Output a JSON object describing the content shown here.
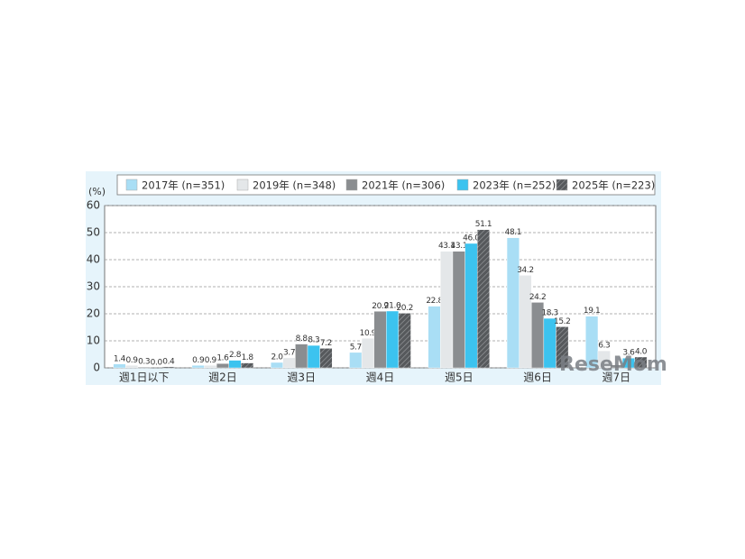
{
  "chart_data": {
    "type": "bar",
    "y_label": "(%)",
    "watermark": "ReseMom",
    "categories": [
      "週1日以下",
      "週2日",
      "週3日",
      "週4日",
      "週5日",
      "週6日",
      "週7日"
    ],
    "ylim": [
      0,
      60
    ],
    "yticks": [
      0,
      10,
      20,
      30,
      40,
      50,
      60
    ],
    "grid": true,
    "series": [
      {
        "name": "2017年 (n=351)",
        "color": "#a9def5",
        "values": [
          1.4,
          0.9,
          2.0,
          5.7,
          22.8,
          48.1,
          19.1
        ],
        "value_labels": [
          "1.4",
          "0.9",
          "2.0",
          "5.7",
          "22.8",
          "48.1",
          "19.1"
        ]
      },
      {
        "name": "2019年 (n=348)",
        "color": "#e4e7e9",
        "values": [
          0.9,
          0.9,
          3.7,
          10.9,
          43.1,
          34.2,
          6.3
        ],
        "value_labels": [
          "0.9",
          "0.9",
          "3.7",
          "10.9",
          "43.1",
          "34.2",
          "6.3"
        ]
      },
      {
        "name": "2021年 (n=306)",
        "color": "#8a8d90",
        "values": [
          0.3,
          1.6,
          8.8,
          20.9,
          43.1,
          24.2,
          1.1
        ],
        "value_labels": [
          "0.3",
          "1.6",
          "8.8",
          "20.9",
          "43.1",
          "24.2",
          null
        ]
      },
      {
        "name": "2023年 (n=252)",
        "color": "#3cc3ef",
        "values": [
          0.0,
          2.8,
          8.3,
          21.0,
          46.0,
          18.3,
          3.6
        ],
        "value_labels": [
          "0.0",
          "2.8",
          "8.3",
          "21.0",
          "46.0",
          "18.3",
          "3.6"
        ]
      },
      {
        "name": "2025年 (n=223)",
        "color": "#56595c",
        "hatch": true,
        "values": [
          0.4,
          1.8,
          7.2,
          20.2,
          51.1,
          15.2,
          4.0
        ],
        "value_labels": [
          "0.4",
          "1.8",
          "7.2",
          "20.2",
          "51.1",
          "15.2",
          "4.0"
        ]
      }
    ]
  }
}
